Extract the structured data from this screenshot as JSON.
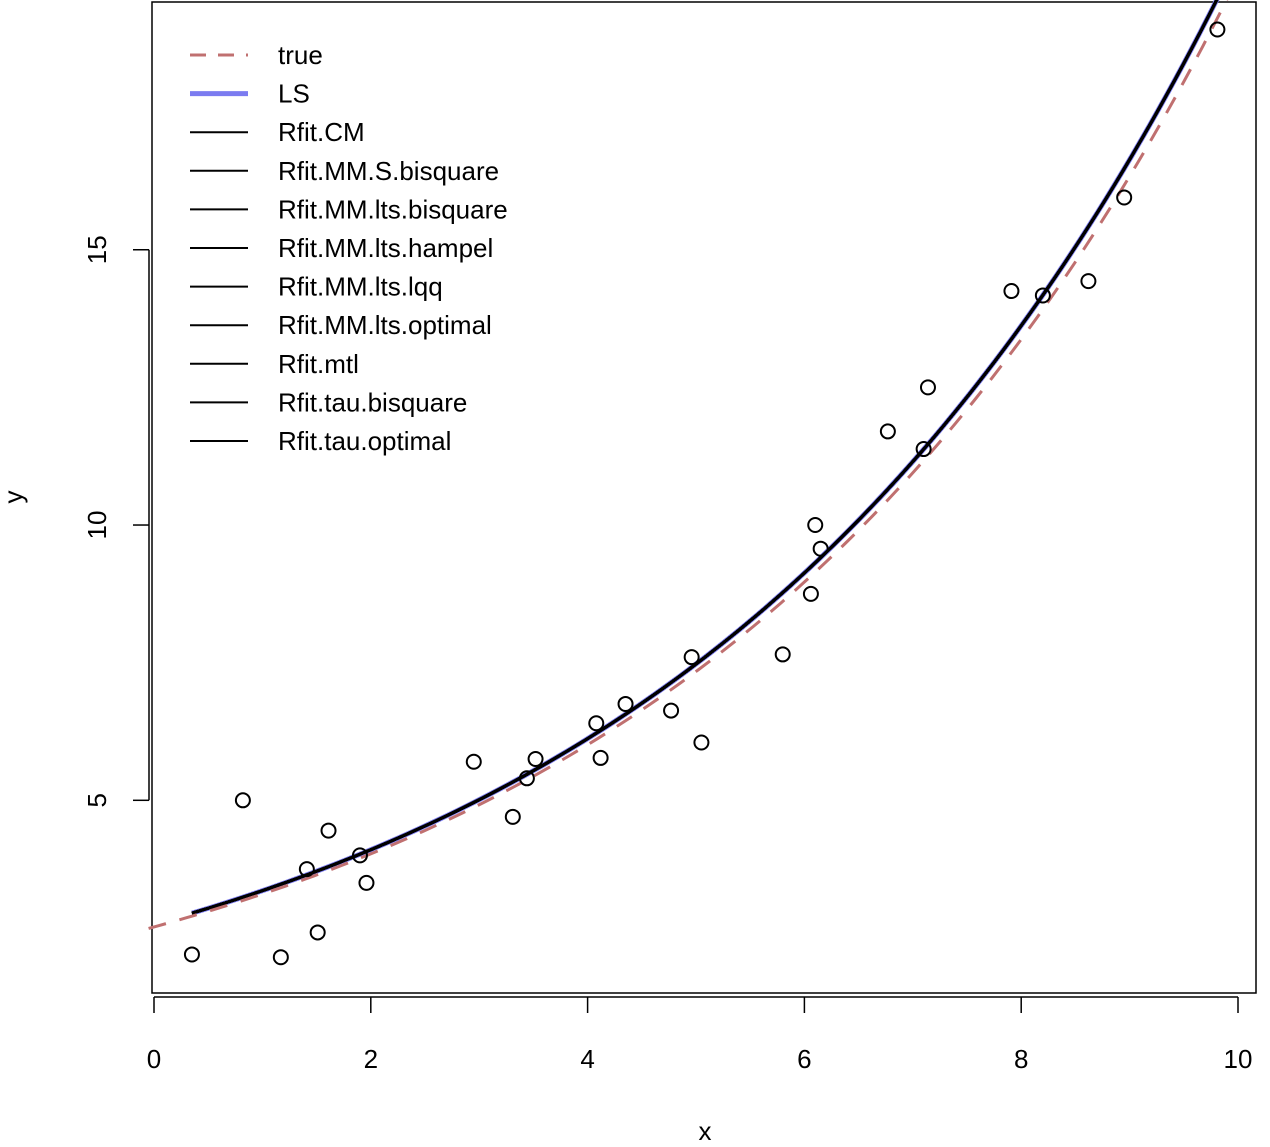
{
  "chart_data": {
    "type": "scatter",
    "title": "",
    "xlabel": "x",
    "ylabel": "y",
    "xlim": [
      0,
      10
    ],
    "ylim": [
      1.5,
      19.5
    ],
    "xticks": [
      0,
      2,
      4,
      6,
      8,
      10
    ],
    "yticks": [
      5,
      10,
      15
    ],
    "xtick_labels": [
      "0",
      "2",
      "4",
      "6",
      "8",
      "10"
    ],
    "ytick_labels": [
      "5",
      "10",
      "15"
    ],
    "grid": false,
    "legend_position": "top-left",
    "points": {
      "x": [
        0.35,
        0.82,
        1.17,
        1.41,
        1.51,
        1.61,
        1.9,
        1.96,
        2.95,
        3.31,
        3.44,
        3.52,
        4.08,
        4.12,
        4.35,
        4.77,
        4.96,
        5.05,
        5.8,
        6.06,
        6.1,
        6.15,
        6.77,
        7.1,
        7.14,
        7.91,
        8.2,
        8.62,
        8.95,
        9.81
      ],
      "y": [
        2.2,
        5.0,
        2.15,
        3.75,
        2.6,
        4.45,
        4.0,
        3.5,
        5.7,
        4.7,
        5.4,
        5.75,
        6.4,
        5.77,
        6.75,
        6.63,
        7.6,
        6.05,
        7.65,
        8.75,
        10.0,
        9.57,
        11.7,
        11.38,
        12.5,
        14.25,
        14.17,
        14.43,
        15.95,
        19.0
      ]
    },
    "curve_domain": [
      0.35,
      9.81
    ],
    "series": [
      {
        "name": "true",
        "style": "dashed",
        "color": "#c07070",
        "values": {
          "a": 2.7,
          "b": 0.2
        }
      },
      {
        "name": "LS",
        "style": "solid",
        "color": "#7b7bf0",
        "values": {
          "a": 2.75,
          "b": 0.2
        }
      },
      {
        "name": "Rfit.CM",
        "style": "solid",
        "color": "#000000",
        "values": {
          "a": 2.75,
          "b": 0.2
        }
      },
      {
        "name": "Rfit.MM.S.bisquare",
        "style": "solid",
        "color": "#000000",
        "values": {
          "a": 2.75,
          "b": 0.2
        }
      },
      {
        "name": "Rfit.MM.lts.bisquare",
        "style": "solid",
        "color": "#000000",
        "values": {
          "a": 2.75,
          "b": 0.2
        }
      },
      {
        "name": "Rfit.MM.lts.hampel",
        "style": "solid",
        "color": "#000000",
        "values": {
          "a": 2.75,
          "b": 0.2
        }
      },
      {
        "name": "Rfit.MM.lts.lqq",
        "style": "solid",
        "color": "#000000",
        "values": {
          "a": 2.75,
          "b": 0.2
        }
      },
      {
        "name": "Rfit.MM.lts.optimal",
        "style": "solid",
        "color": "#000000",
        "values": {
          "a": 2.75,
          "b": 0.2
        }
      },
      {
        "name": "Rfit.mtl",
        "style": "solid",
        "color": "#000000",
        "values": {
          "a": 2.75,
          "b": 0.2
        }
      },
      {
        "name": "Rfit.tau.bisquare",
        "style": "solid",
        "color": "#000000",
        "values": {
          "a": 2.75,
          "b": 0.2
        }
      },
      {
        "name": "Rfit.tau.optimal",
        "style": "solid",
        "color": "#000000",
        "values": {
          "a": 2.75,
          "b": 0.2
        }
      }
    ]
  }
}
